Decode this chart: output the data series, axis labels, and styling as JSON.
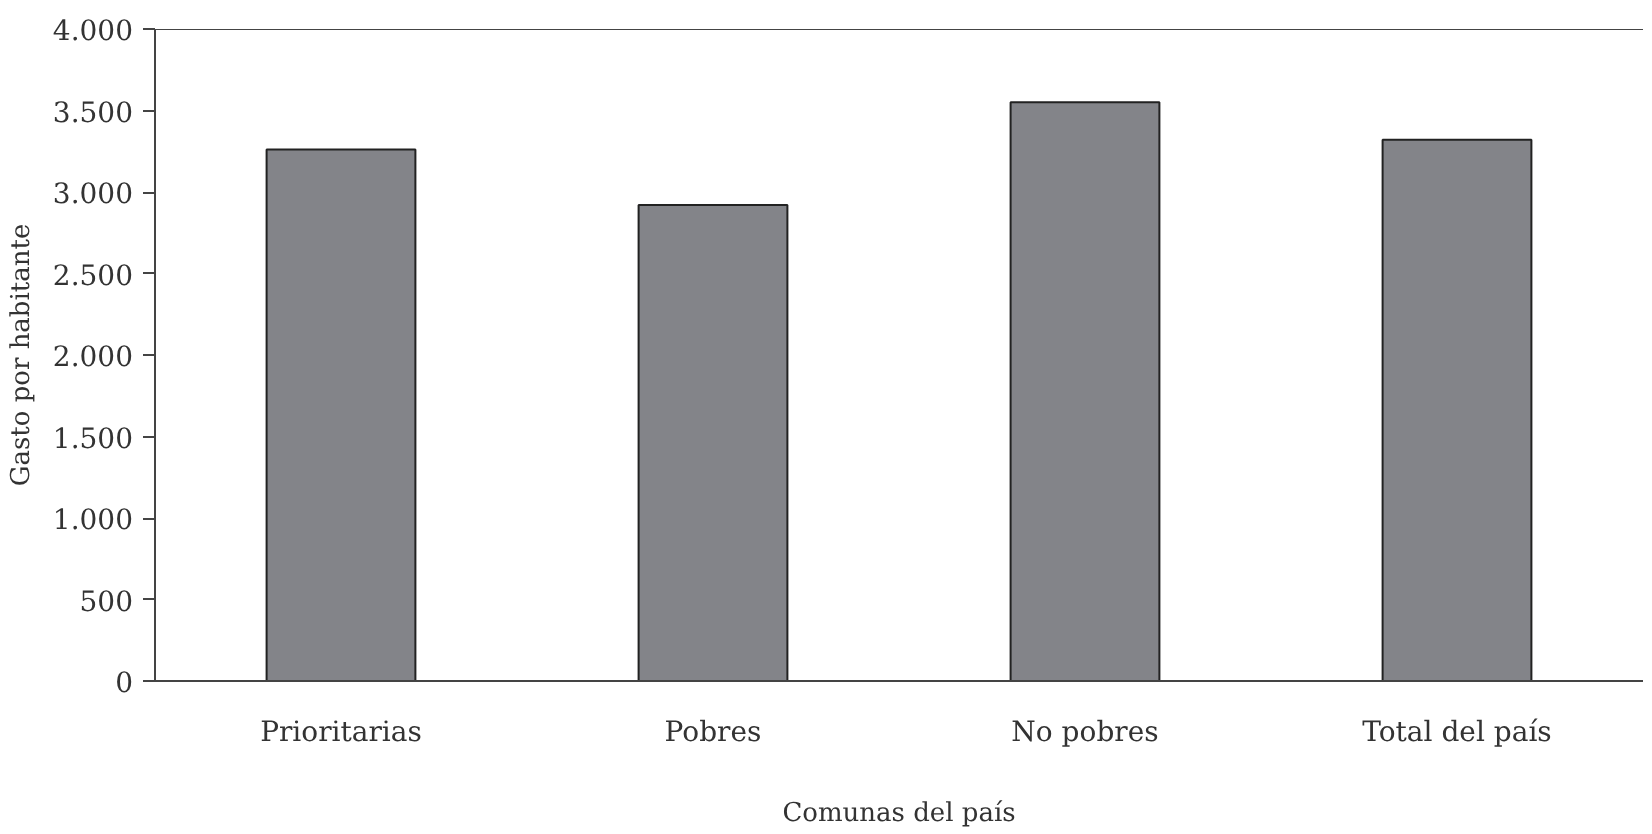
{
  "chart_data": {
    "type": "bar",
    "xlabel": "Comunas del país",
    "ylabel": "Gasto por habitante",
    "categories": [
      "Prioritarias",
      "Pobres",
      "No pobres",
      "Total del país"
    ],
    "values": [
      3260,
      2920,
      3550,
      3320
    ],
    "color": "#838489",
    "ylim": [
      0,
      4000
    ],
    "yticks": [
      {
        "value": 0,
        "label": "0"
      },
      {
        "value": 500,
        "label": "500"
      },
      {
        "value": 1000,
        "label": "1.000"
      },
      {
        "value": 1500,
        "label": "1.500"
      },
      {
        "value": 2000,
        "label": "2.000"
      },
      {
        "value": 2500,
        "label": "2.500"
      },
      {
        "value": 3000,
        "label": "3.000"
      },
      {
        "value": 3500,
        "label": "3.500"
      },
      {
        "value": 4000,
        "label": "4.000"
      }
    ],
    "grid": false
  }
}
